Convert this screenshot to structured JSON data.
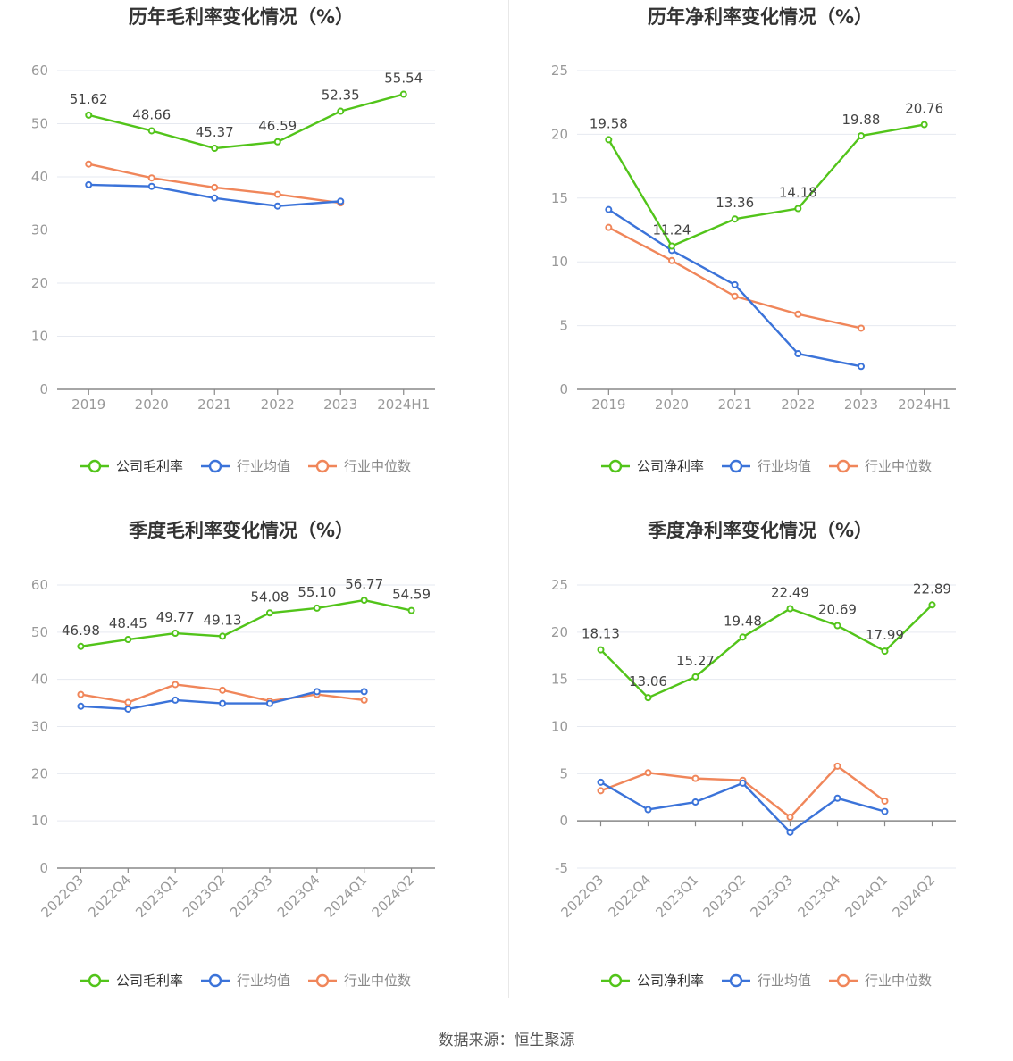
{
  "source": "数据来源：恒生聚源",
  "colors": {
    "company": "#52c41a",
    "avg": "#3b73d9",
    "median": "#f0865a",
    "grid": "#e6e9f0",
    "axis": "#888888",
    "label": "#999999"
  },
  "chart_data": [
    {
      "type": "line",
      "title": "历年毛利率变化情况（%）",
      "categories": [
        "2019",
        "2020",
        "2021",
        "2022",
        "2023",
        "2024H1"
      ],
      "ylim": [
        0,
        60
      ],
      "yticks": [
        "0",
        "10",
        "20",
        "30",
        "40",
        "50",
        "60"
      ],
      "series": [
        {
          "name": "公司毛利率",
          "role": "company",
          "values": [
            51.62,
            48.66,
            45.37,
            46.59,
            52.35,
            55.54
          ],
          "labels": [
            "51.62",
            "48.66",
            "45.37",
            "46.59",
            "52.35",
            "55.54"
          ]
        },
        {
          "name": "行业均值",
          "role": "avg",
          "values": [
            38.5,
            38.2,
            36.0,
            34.5,
            35.4,
            null
          ]
        },
        {
          "name": "行业中位数",
          "role": "median",
          "values": [
            42.4,
            39.8,
            38.0,
            36.7,
            35.1,
            null
          ]
        }
      ],
      "legend": "bottom",
      "grid": true
    },
    {
      "type": "line",
      "title": "历年净利率变化情况（%）",
      "categories": [
        "2019",
        "2020",
        "2021",
        "2022",
        "2023",
        "2024H1"
      ],
      "ylim": [
        0,
        25
      ],
      "yticks": [
        "0",
        "5",
        "10",
        "15",
        "20",
        "25"
      ],
      "series": [
        {
          "name": "公司净利率",
          "role": "company",
          "values": [
            19.58,
            11.24,
            13.36,
            14.18,
            19.88,
            20.76
          ],
          "labels": [
            "19.58",
            "11.24",
            "13.36",
            "14.18",
            "19.88",
            "20.76"
          ]
        },
        {
          "name": "行业均值",
          "role": "avg",
          "values": [
            14.1,
            10.9,
            8.2,
            2.8,
            1.8,
            null
          ]
        },
        {
          "name": "行业中位数",
          "role": "median",
          "values": [
            12.7,
            10.1,
            7.3,
            5.9,
            4.8,
            null
          ]
        }
      ],
      "legend": "bottom",
      "grid": true
    },
    {
      "type": "line",
      "title": "季度毛利率变化情况（%）",
      "categories": [
        "2022Q3",
        "2022Q4",
        "2023Q1",
        "2023Q2",
        "2023Q3",
        "2023Q4",
        "2024Q1",
        "2024Q2"
      ],
      "ylim": [
        0,
        60
      ],
      "yticks": [
        "0",
        "10",
        "20",
        "30",
        "40",
        "50",
        "60"
      ],
      "series": [
        {
          "name": "公司毛利率",
          "role": "company",
          "values": [
            46.98,
            48.45,
            49.77,
            49.13,
            54.08,
            55.1,
            56.77,
            54.59
          ],
          "labels": [
            "46.98",
            "48.45",
            "49.77",
            "49.13",
            "54.08",
            "55.10",
            "56.77",
            "54.59"
          ]
        },
        {
          "name": "行业均值",
          "role": "avg",
          "values": [
            34.3,
            33.7,
            35.6,
            34.9,
            34.9,
            37.4,
            37.4,
            null
          ]
        },
        {
          "name": "行业中位数",
          "role": "median",
          "values": [
            36.8,
            35.1,
            38.9,
            37.7,
            35.4,
            36.8,
            35.6,
            null
          ]
        }
      ],
      "legend": "bottom",
      "grid": true
    },
    {
      "type": "line",
      "title": "季度净利率变化情况（%）",
      "categories": [
        "2022Q3",
        "2022Q4",
        "2023Q1",
        "2023Q2",
        "2023Q3",
        "2023Q4",
        "2024Q1",
        "2024Q2"
      ],
      "ylim": [
        -5,
        25
      ],
      "yticks": [
        "-5",
        "0",
        "5",
        "10",
        "15",
        "20",
        "25"
      ],
      "series": [
        {
          "name": "公司净利率",
          "role": "company",
          "values": [
            18.13,
            13.06,
            15.27,
            19.48,
            22.49,
            20.69,
            17.99,
            22.89
          ],
          "labels": [
            "18.13",
            "13.06",
            "15.27",
            "19.48",
            "22.49",
            "20.69",
            "17.99",
            "22.89"
          ]
        },
        {
          "name": "行业均值",
          "role": "avg",
          "values": [
            4.1,
            1.2,
            2.0,
            4.0,
            -1.2,
            2.4,
            1.0,
            null
          ]
        },
        {
          "name": "行业中位数",
          "role": "median",
          "values": [
            3.2,
            5.1,
            4.5,
            4.3,
            0.4,
            5.8,
            2.1,
            null
          ]
        }
      ],
      "legend": "bottom",
      "grid": true
    }
  ]
}
